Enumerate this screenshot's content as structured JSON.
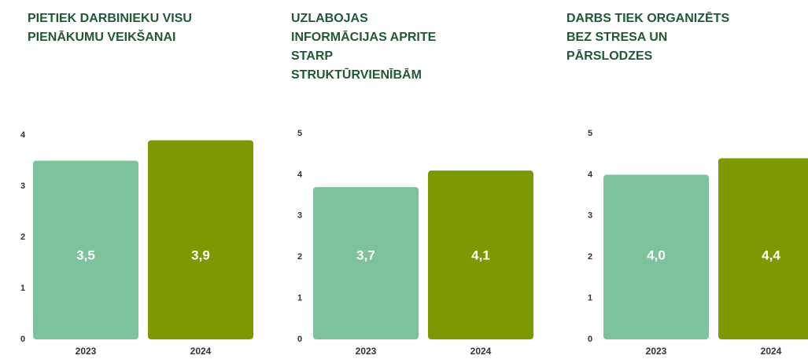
{
  "chart_data": [
    {
      "type": "bar",
      "title": [
        "PIETIEK DARBINIEKU VISU",
        "PIENĀKUMU VEIKŠANAI"
      ],
      "categories": [
        "2023",
        "2024"
      ],
      "values": [
        3.5,
        3.9
      ],
      "value_labels": [
        "3,5",
        "3,9"
      ],
      "colors": [
        "#7cc39c",
        "#7a9a00"
      ],
      "ylim": [
        0,
        4
      ],
      "yticks": [
        0,
        1,
        2,
        3,
        4
      ]
    },
    {
      "type": "bar",
      "title": [
        "UZLABOJAS",
        "INFORMĀCIJAS APRITE",
        "STARP",
        "STRUKTŪRVIENĪBĀM"
      ],
      "categories": [
        "2023",
        "2024"
      ],
      "values": [
        3.7,
        4.1
      ],
      "value_labels": [
        "3,7",
        "4,1"
      ],
      "colors": [
        "#7cc39c",
        "#7a9a00"
      ],
      "ylim": [
        0,
        5
      ],
      "yticks": [
        0,
        1,
        2,
        3,
        4,
        5
      ]
    },
    {
      "type": "bar",
      "title": [
        "DARBS TIEK ORGANIZĒTS",
        "BEZ STRESA UN",
        "PĀRSLODZES"
      ],
      "categories": [
        "2023",
        "2024"
      ],
      "values": [
        4.0,
        4.4
      ],
      "value_labels": [
        "4,0",
        "4,4"
      ],
      "colors": [
        "#7cc39c",
        "#7a9a00"
      ],
      "ylim": [
        0,
        5
      ],
      "yticks": [
        0,
        1,
        2,
        3,
        4,
        5
      ]
    }
  ]
}
